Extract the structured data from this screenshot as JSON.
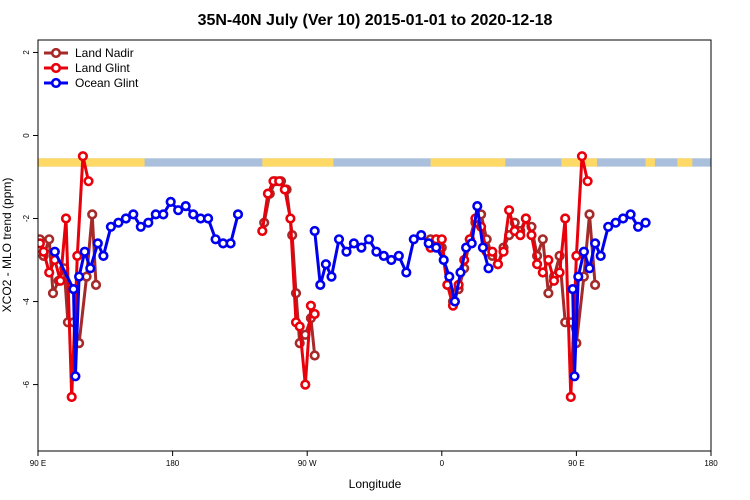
{
  "chart_data": {
    "type": "line",
    "title": "35N-40N July (Ver 10)   2015-01-01 to 2020-12-18",
    "xlabel": "Longitude",
    "ylabel": "XCO2 - MLO trend (ppm)",
    "xlim": [
      90,
      450
    ],
    "ylim": [
      -7.6,
      2.3
    ],
    "x_ticks": [
      {
        "value": 90,
        "label": "90 E"
      },
      {
        "value": 162,
        "label": "180"
      },
      {
        "value": 234,
        "label": "90 W"
      },
      {
        "value": 306,
        "label": "0"
      },
      {
        "value": 378,
        "label": "90 E"
      },
      {
        "value": 450,
        "label": "180"
      }
    ],
    "y_ticks": [
      {
        "value": 2,
        "label": "2"
      },
      {
        "value": 0,
        "label": "0"
      },
      {
        "value": -2,
        "label": "-2"
      },
      {
        "value": -4,
        "label": "-4"
      },
      {
        "value": -6,
        "label": "-6"
      }
    ],
    "grid": false,
    "legend_position": "top-left",
    "land_ocean_band": {
      "y_range": [
        -0.75,
        -0.55
      ],
      "land_color": "#ffd966",
      "ocean_color": "#a9bfdc",
      "land_x_ranges": [
        [
          90,
          147
        ],
        [
          210,
          248
        ],
        [
          300,
          340
        ],
        [
          370,
          389
        ],
        [
          415,
          420
        ],
        [
          432,
          440
        ]
      ]
    },
    "series": [
      {
        "name": "Land Nadir",
        "color": "#a52a2a",
        "points": [
          [
            91,
            -2.5
          ],
          [
            93,
            -2.9
          ],
          [
            96,
            -2.5
          ],
          [
            98,
            -3.8
          ],
          [
            101,
            -3.5
          ],
          [
            104,
            -3.2
          ],
          [
            106,
            -4.5
          ],
          [
            109,
            -4.5
          ],
          [
            112,
            -5.0
          ],
          [
            116,
            -3.4
          ],
          [
            119,
            -1.9
          ],
          [
            121,
            -3.6
          ],
          [
            211,
            -2.1
          ],
          [
            214,
            -1.4
          ],
          [
            217,
            -1.1
          ],
          [
            220,
            -1.1
          ],
          [
            223,
            -1.3
          ],
          [
            226,
            -2.4
          ],
          [
            228,
            -3.8
          ],
          [
            230,
            -5.0
          ],
          [
            233,
            -4.8
          ],
          [
            236,
            -4.4
          ],
          [
            238,
            -5.3
          ],
          [
            300,
            -2.5
          ],
          [
            303,
            -2.5
          ],
          [
            306,
            -2.7
          ],
          [
            309,
            -3.6
          ],
          [
            312,
            -4.0
          ],
          [
            315,
            -3.7
          ],
          [
            318,
            -3.2
          ],
          [
            321,
            -2.5
          ],
          [
            324,
            -2.1
          ],
          [
            327,
            -1.9
          ],
          [
            330,
            -2.5
          ],
          [
            333,
            -2.9
          ],
          [
            336,
            -3.1
          ],
          [
            339,
            -2.7
          ],
          [
            342,
            -2.4
          ],
          [
            345,
            -2.1
          ],
          [
            348,
            -2.3
          ],
          [
            351,
            -2.0
          ],
          [
            354,
            -2.2
          ],
          [
            357,
            -2.9
          ],
          [
            360,
            -2.5
          ],
          [
            363,
            -3.8
          ],
          [
            366,
            -3.4
          ],
          [
            369,
            -2.9
          ],
          [
            372,
            -4.5
          ],
          [
            375,
            -4.5
          ],
          [
            378,
            -5.0
          ],
          [
            382,
            -3.4
          ],
          [
            385,
            -1.9
          ],
          [
            388,
            -3.6
          ]
        ]
      },
      {
        "name": "Land Glint",
        "color": "#e8000b",
        "points": [
          [
            91,
            -2.6
          ],
          [
            93,
            -2.8
          ],
          [
            96,
            -3.3
          ],
          [
            99,
            -3.0
          ],
          [
            102,
            -3.5
          ],
          [
            105,
            -2.0
          ],
          [
            108,
            -6.3
          ],
          [
            111,
            -2.9
          ],
          [
            114,
            -0.5
          ],
          [
            117,
            -1.1
          ],
          [
            210,
            -2.3
          ],
          [
            213,
            -1.4
          ],
          [
            216,
            -1.1
          ],
          [
            219,
            -1.1
          ],
          [
            222,
            -1.3
          ],
          [
            225,
            -2.0
          ],
          [
            228,
            -4.5
          ],
          [
            230,
            -4.6
          ],
          [
            233,
            -6.0
          ],
          [
            236,
            -4.1
          ],
          [
            238,
            -4.3
          ],
          [
            300,
            -2.7
          ],
          [
            303,
            -2.5
          ],
          [
            306,
            -2.5
          ],
          [
            309,
            -3.6
          ],
          [
            312,
            -4.1
          ],
          [
            315,
            -3.6
          ],
          [
            318,
            -3.0
          ],
          [
            321,
            -2.5
          ],
          [
            324,
            -2.0
          ],
          [
            327,
            -2.2
          ],
          [
            330,
            -2.8
          ],
          [
            333,
            -2.8
          ],
          [
            336,
            -3.1
          ],
          [
            339,
            -2.8
          ],
          [
            342,
            -1.8
          ],
          [
            345,
            -2.3
          ],
          [
            348,
            -2.4
          ],
          [
            351,
            -2.0
          ],
          [
            354,
            -2.4
          ],
          [
            357,
            -3.1
          ],
          [
            360,
            -3.3
          ],
          [
            363,
            -3.0
          ],
          [
            366,
            -3.5
          ],
          [
            369,
            -3.3
          ],
          [
            372,
            -2.0
          ],
          [
            375,
            -6.3
          ],
          [
            378,
            -2.9
          ],
          [
            381,
            -0.5
          ],
          [
            384,
            -1.1
          ]
        ]
      },
      {
        "name": "Ocean Glint",
        "color": "#0000ee",
        "points": [
          [
            99,
            -2.8
          ],
          [
            109,
            -3.7
          ],
          [
            110,
            -5.8
          ],
          [
            112,
            -3.4
          ],
          [
            115,
            -2.8
          ],
          [
            118,
            -3.2
          ],
          [
            122,
            -2.6
          ],
          [
            125,
            -2.9
          ],
          [
            129,
            -2.2
          ],
          [
            133,
            -2.1
          ],
          [
            137,
            -2.0
          ],
          [
            141,
            -1.9
          ],
          [
            145,
            -2.2
          ],
          [
            149,
            -2.1
          ],
          [
            153,
            -1.9
          ],
          [
            157,
            -1.9
          ],
          [
            161,
            -1.6
          ],
          [
            165,
            -1.8
          ],
          [
            169,
            -1.7
          ],
          [
            173,
            -1.9
          ],
          [
            177,
            -2.0
          ],
          [
            181,
            -2.0
          ],
          [
            185,
            -2.5
          ],
          [
            189,
            -2.6
          ],
          [
            193,
            -2.6
          ],
          [
            197,
            -1.9
          ],
          [
            238,
            -2.3
          ],
          [
            241,
            -3.6
          ],
          [
            244,
            -3.1
          ],
          [
            247,
            -3.4
          ],
          [
            251,
            -2.5
          ],
          [
            255,
            -2.8
          ],
          [
            259,
            -2.6
          ],
          [
            263,
            -2.7
          ],
          [
            267,
            -2.5
          ],
          [
            271,
            -2.8
          ],
          [
            275,
            -2.9
          ],
          [
            279,
            -3.0
          ],
          [
            283,
            -2.9
          ],
          [
            287,
            -3.3
          ],
          [
            291,
            -2.5
          ],
          [
            295,
            -2.4
          ],
          [
            299,
            -2.6
          ],
          [
            303,
            -2.7
          ],
          [
            307,
            -3.0
          ],
          [
            310,
            -3.4
          ],
          [
            313,
            -4.0
          ],
          [
            316,
            -3.3
          ],
          [
            319,
            -2.7
          ],
          [
            322,
            -2.6
          ],
          [
            325,
            -1.7
          ],
          [
            328,
            -2.7
          ],
          [
            331,
            -3.2
          ],
          [
            376,
            -3.7
          ],
          [
            377,
            -5.8
          ],
          [
            379,
            -3.4
          ],
          [
            382,
            -2.8
          ],
          [
            385,
            -3.2
          ],
          [
            388,
            -2.6
          ],
          [
            391,
            -2.9
          ],
          [
            395,
            -2.2
          ],
          [
            399,
            -2.1
          ],
          [
            403,
            -2.0
          ],
          [
            407,
            -1.9
          ],
          [
            411,
            -2.2
          ],
          [
            415,
            -2.1
          ]
        ]
      }
    ]
  }
}
